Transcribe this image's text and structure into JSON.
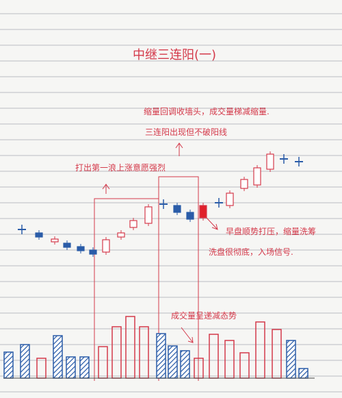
{
  "title": "中继三连阳(一)",
  "annotations": [
    "缩量回调收墙头，成交量梯减缩量.",
    "三连阳出现但不破阳线",
    "打出第一浪上涨意愿强烈",
    "早盘顺势打压，缩量洗筹",
    "洗盘很彻底，入场信号.",
    "成交量呈递减态势"
  ]
}
